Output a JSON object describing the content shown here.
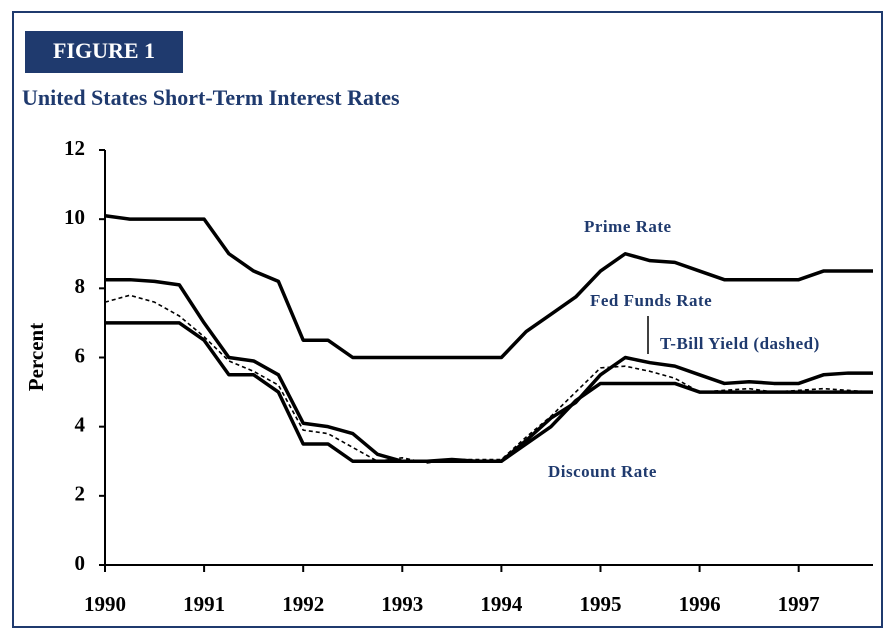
{
  "chart_data": {
    "type": "line",
    "figure_label": "FIGURE 1",
    "title": "United States Short-Term Interest Rates",
    "ylabel": "Percent",
    "x": [
      1990,
      1990.25,
      1990.5,
      1990.75,
      1991,
      1991.25,
      1991.5,
      1991.75,
      1992,
      1992.25,
      1992.5,
      1992.75,
      1993,
      1993.25,
      1993.5,
      1993.75,
      1994,
      1994.25,
      1994.5,
      1994.75,
      1995,
      1995.25,
      1995.5,
      1995.75,
      1996,
      1996.25,
      1996.5,
      1996.75,
      1997,
      1997.25,
      1997.5,
      1997.75
    ],
    "series": [
      {
        "name": "Prime Rate",
        "color": "#000000",
        "dashed": false,
        "values": [
          10.1,
          10,
          10,
          10,
          10,
          9,
          8.5,
          8.2,
          6.5,
          6.5,
          6,
          6,
          6,
          6,
          6,
          6,
          6,
          6.75,
          7.25,
          7.75,
          8.5,
          9,
          8.8,
          8.75,
          8.5,
          8.25,
          8.25,
          8.25,
          8.25,
          8.5,
          8.5,
          8.5
        ]
      },
      {
        "name": "Fed Funds Rate",
        "color": "#000000",
        "dashed": false,
        "values": [
          8.25,
          8.25,
          8.2,
          8.1,
          7,
          6,
          5.9,
          5.5,
          4.1,
          4,
          3.8,
          3.2,
          3,
          3,
          3.05,
          3,
          3,
          3.6,
          4.25,
          4.7,
          5.5,
          6,
          5.85,
          5.75,
          5.5,
          5.25,
          5.3,
          5.25,
          5.25,
          5.5,
          5.55,
          5.55
        ]
      },
      {
        "name": "T-Bill Yield (dashed)",
        "color": "#000000",
        "dashed": true,
        "values": [
          7.6,
          7.8,
          7.6,
          7.2,
          6.6,
          5.9,
          5.6,
          5.2,
          3.9,
          3.8,
          3.4,
          3,
          3.1,
          2.95,
          3.05,
          3.05,
          3.05,
          3.7,
          4.3,
          5,
          5.7,
          5.75,
          5.6,
          5.4,
          5,
          5.05,
          5.1,
          5,
          5.05,
          5.1,
          5.05,
          5
        ]
      },
      {
        "name": "Discount Rate",
        "color": "#000000",
        "dashed": false,
        "values": [
          7,
          7,
          7,
          7,
          6.5,
          5.5,
          5.5,
          5,
          3.5,
          3.5,
          3,
          3,
          3,
          3,
          3,
          3,
          3,
          3.5,
          4,
          4.75,
          5.25,
          5.25,
          5.25,
          5.25,
          5,
          5,
          5,
          5,
          5,
          5,
          5,
          5
        ]
      }
    ],
    "xlim": [
      1990,
      1997.75
    ],
    "xticks": [
      1990,
      1991,
      1992,
      1993,
      1994,
      1995,
      1996,
      1997
    ],
    "ylim": [
      0,
      12
    ],
    "yticks": [
      0,
      2,
      4,
      6,
      8,
      10,
      12
    ],
    "grid": false
  }
}
